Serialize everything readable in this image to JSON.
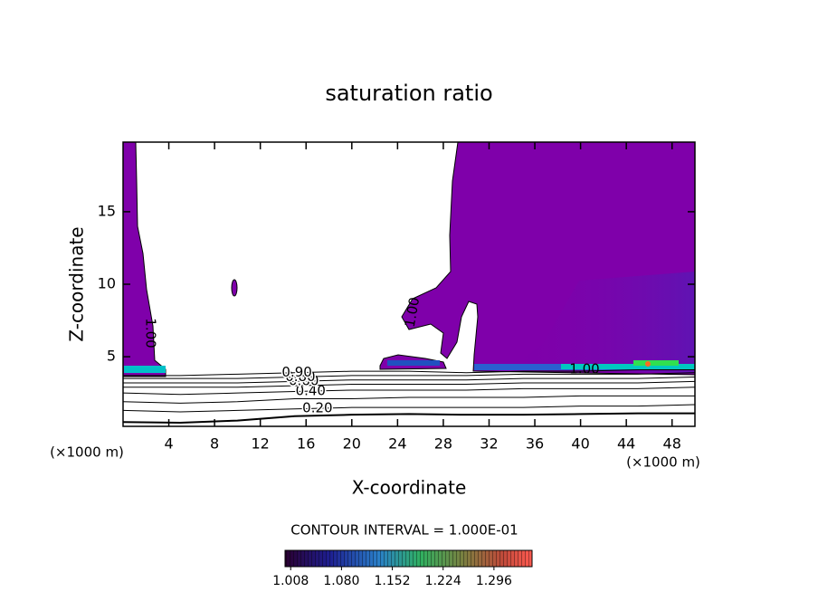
{
  "chart_data": {
    "type": "contour",
    "title": "saturation ratio",
    "xlabel": "X-coordinate",
    "ylabel": "Z-coordinate",
    "x_unit": "(×1000 m)",
    "y_unit": "(×1000 m)",
    "xlim": [
      0,
      50
    ],
    "ylim": [
      0.2,
      19.8
    ],
    "xticks": [
      4,
      8,
      12,
      16,
      20,
      24,
      28,
      32,
      36,
      40,
      44,
      48
    ],
    "yticks": [
      5,
      10,
      15
    ],
    "fill_color": "#7f00aa",
    "contour_x": [
      0,
      5,
      10,
      15,
      20,
      25,
      30,
      35,
      40,
      45,
      50
    ],
    "contours": [
      {
        "values": [
          0.5,
          0.45,
          0.6,
          0.9,
          1.0,
          1.05,
          1.0,
          1.0,
          1.05,
          1.1,
          1.1
        ]
      },
      {
        "values": [
          1.3,
          1.2,
          1.3,
          1.4,
          1.5,
          1.5,
          1.5,
          1.5,
          1.6,
          1.6,
          1.7
        ],
        "label": "0.20"
      },
      {
        "values": [
          1.9,
          1.8,
          1.9,
          2.1,
          2.1,
          2.2,
          2.2,
          2.2,
          2.3,
          2.3,
          2.3
        ]
      },
      {
        "values": [
          2.5,
          2.4,
          2.5,
          2.6,
          2.7,
          2.7,
          2.7,
          2.8,
          2.8,
          2.8,
          2.9
        ],
        "label": "0.40"
      },
      {
        "values": [
          2.9,
          2.9,
          2.9,
          3.0,
          3.1,
          3.1,
          3.1,
          3.2,
          3.2,
          3.2,
          3.3
        ]
      },
      {
        "values": [
          3.2,
          3.2,
          3.2,
          3.3,
          3.4,
          3.4,
          3.4,
          3.5,
          3.5,
          3.5,
          3.6
        ],
        "label": "0.60"
      },
      {
        "values": [
          3.5,
          3.5,
          3.5,
          3.6,
          3.7,
          3.7,
          3.7,
          3.8,
          3.8,
          3.8,
          3.9
        ],
        "label": "0.80"
      },
      {
        "values": [
          3.7,
          3.7,
          3.8,
          3.9,
          4.0,
          4.0,
          3.9,
          4.0,
          4.0,
          4.1,
          4.1
        ],
        "label": "0.90"
      }
    ],
    "saturated_label": "1.00",
    "contour_interval": "CONTOUR INTERVAL = 1.000E-01",
    "colorbar": {
      "lim": [
        1.0,
        1.35
      ],
      "ticks": [
        1.008,
        {
          "value": 1.08,
          "label": "1.080"
        },
        1.152,
        1.224,
        1.296
      ]
    }
  }
}
